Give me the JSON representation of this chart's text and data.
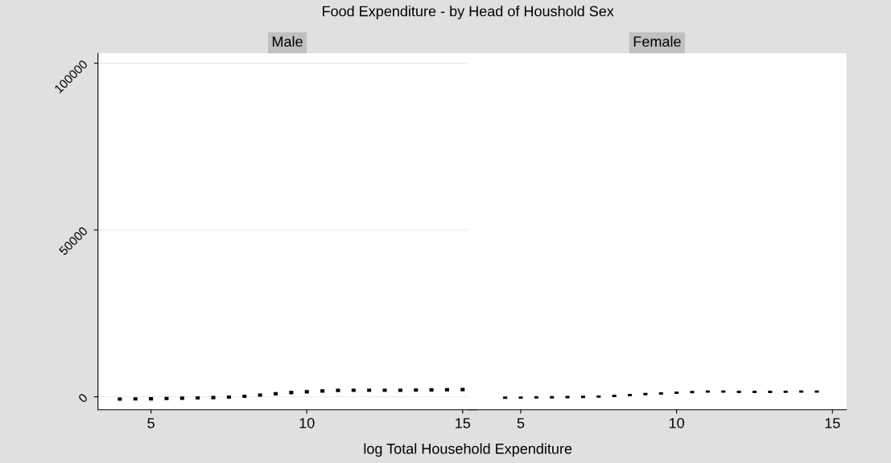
{
  "chart_data": [
    {
      "type": "bar",
      "title": "Male",
      "xlabel": "log Total Household Expenditure",
      "annotations": [
        "Food Expenditure - by Head of Houshold Sex"
      ],
      "x": [
        4.0,
        4.5,
        5.0,
        5.5,
        6.0,
        6.5,
        7.0,
        7.5,
        8.0,
        8.5,
        9.0,
        9.5,
        10.0,
        10.5,
        11.0,
        11.5,
        12.0,
        12.5,
        13.0,
        13.5,
        14.0,
        14.5,
        15.0
      ],
      "base": [
        -1200,
        -1150,
        -1100,
        -1020,
        -950,
        -850,
        -750,
        -600,
        -350,
        0,
        400,
        750,
        1000,
        1250,
        1400,
        1450,
        1450,
        1450,
        1450,
        1500,
        1550,
        1600,
        1650
      ],
      "values": [
        1000,
        1000,
        1000,
        1000,
        1000,
        1000,
        1000,
        1000,
        1000,
        1000,
        1000,
        1000,
        1000,
        1000,
        1000,
        1000,
        1000,
        1000,
        1000,
        1000,
        1000,
        1000,
        1000
      ],
      "color": "#000000",
      "xlim": [
        3.3,
        15.45
      ],
      "ylim": [
        -3900,
        103000
      ],
      "xticks": [
        5,
        10,
        15
      ],
      "yticks": [
        0,
        50000,
        100000
      ],
      "grid": "y"
    },
    {
      "type": "bar",
      "title": "Female",
      "x": [
        4.5,
        5.0,
        5.5,
        6.0,
        6.5,
        7.0,
        7.5,
        8.0,
        8.5,
        9.0,
        9.5,
        10.0,
        10.5,
        11.0,
        11.5,
        12.0,
        12.5,
        13.0,
        13.5,
        14.0,
        14.5
      ],
      "base": [
        -650,
        -600,
        -550,
        -500,
        -450,
        -400,
        -300,
        -100,
        150,
        450,
        650,
        850,
        1050,
        1200,
        1200,
        1100,
        1100,
        1100,
        1150,
        1200,
        1200
      ],
      "values": [
        700,
        700,
        700,
        700,
        700,
        700,
        700,
        700,
        700,
        700,
        700,
        700,
        700,
        700,
        700,
        700,
        700,
        700,
        700,
        700,
        700
      ],
      "color": "#000000",
      "xlim": [
        3.3,
        15.45
      ],
      "ylim": [
        -3900,
        103000
      ],
      "xticks": [
        5,
        10,
        15
      ],
      "tick_labels": "x",
      "grid": "y"
    }
  ]
}
